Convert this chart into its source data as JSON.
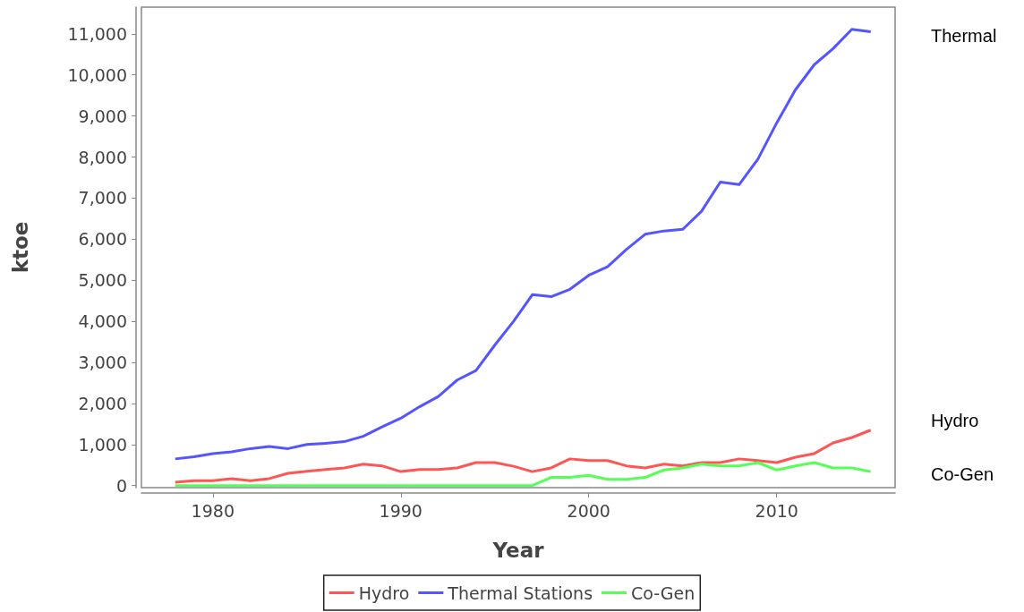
{
  "chart_data": {
    "type": "line",
    "xlabel": "Year",
    "ylabel": "ktoe",
    "x": [
      1978,
      1979,
      1980,
      1981,
      1982,
      1983,
      1984,
      1985,
      1986,
      1987,
      1988,
      1989,
      1990,
      1991,
      1992,
      1993,
      1994,
      1995,
      1996,
      1997,
      1998,
      1999,
      2000,
      2001,
      2002,
      2003,
      2004,
      2005,
      2006,
      2007,
      2008,
      2009,
      2010,
      2011,
      2012,
      2013,
      2014,
      2015
    ],
    "series": [
      {
        "name": "Hydro",
        "color": "#ff5555",
        "values": [
          80,
          120,
          120,
          170,
          120,
          170,
          300,
          350,
          390,
          430,
          520,
          480,
          340,
          390,
          390,
          430,
          560,
          560,
          470,
          340,
          430,
          650,
          610,
          610,
          480,
          430,
          520,
          480,
          560,
          560,
          650,
          610,
          560,
          690,
          780,
          1040,
          1170,
          1350
        ]
      },
      {
        "name": "Thermal Stations",
        "color": "#5555ff",
        "values": [
          650,
          700,
          780,
          820,
          900,
          950,
          900,
          1000,
          1030,
          1070,
          1200,
          1430,
          1640,
          1920,
          2170,
          2570,
          2800,
          3420,
          4000,
          4650,
          4600,
          4780,
          5120,
          5330,
          5750,
          6120,
          6200,
          6240,
          6680,
          7390,
          7330,
          7950,
          8830,
          9640,
          10250,
          10640,
          11110,
          11050
        ]
      },
      {
        "name": "Co-Gen",
        "color": "#55ff55",
        "values": [
          0,
          0,
          0,
          0,
          0,
          0,
          0,
          0,
          0,
          0,
          0,
          0,
          0,
          0,
          0,
          0,
          0,
          0,
          0,
          0,
          200,
          200,
          250,
          150,
          150,
          200,
          380,
          430,
          520,
          480,
          480,
          560,
          380,
          480,
          560,
          430,
          430,
          340
        ]
      }
    ],
    "annotations": [
      "Thermal",
      "Hydro",
      "Co-Gen"
    ],
    "xlim": [
      1976.2,
      2016.3
    ],
    "xticks": [
      1980,
      1990,
      2000,
      2010
    ],
    "ylim": [
      -50,
      11650
    ],
    "yticks": [
      0,
      {
        "value": 1000,
        "label": "1,000"
      },
      {
        "value": 2000,
        "label": "2,000"
      },
      {
        "value": 3000,
        "label": "3,000"
      },
      {
        "value": 4000,
        "label": "4,000"
      },
      {
        "value": 5000,
        "label": "5,000"
      },
      {
        "value": 6000,
        "label": "6,000"
      },
      {
        "value": 7000,
        "label": "7,000"
      },
      {
        "value": 8000,
        "label": "8,000"
      },
      {
        "value": 9000,
        "label": "9,000"
      },
      {
        "value": 10000,
        "label": "10,000"
      },
      {
        "value": 11000,
        "label": "11,000"
      }
    ],
    "grid": false,
    "legend": "bottom",
    "marker": "none",
    "line_style": "solid"
  }
}
